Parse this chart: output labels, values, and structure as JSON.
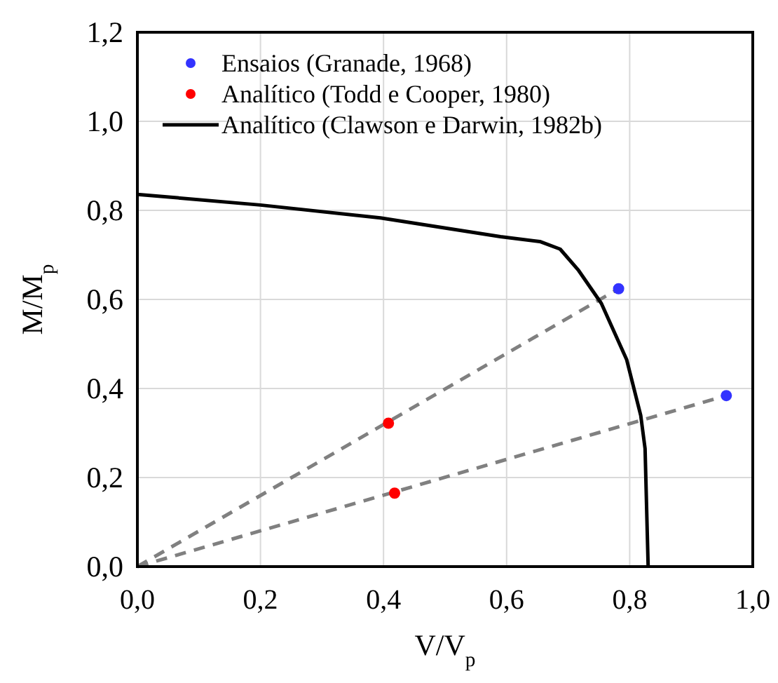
{
  "chart_data": {
    "type": "scatter",
    "xlabel": "V/V$_{p}$",
    "ylabel": "M/M$_{p}$",
    "xlim": [
      0,
      1
    ],
    "ylim": [
      0,
      1.2
    ],
    "xticks": [
      {
        "value": 0,
        "label": "0,0"
      },
      {
        "value": 0.2,
        "label": "0,2"
      },
      {
        "value": 0.4,
        "label": "0,4"
      },
      {
        "value": 0.6,
        "label": "0,6"
      },
      {
        "value": 0.8,
        "label": "0,8"
      },
      {
        "value": 1,
        "label": "1,0"
      }
    ],
    "yticks": [
      {
        "value": 0,
        "label": "0,0"
      },
      {
        "value": 0.2,
        "label": "0,2"
      },
      {
        "value": 0.4,
        "label": "0,4"
      },
      {
        "value": 0.6,
        "label": "0,6"
      },
      {
        "value": 0.8,
        "label": "0,8"
      },
      {
        "value": 1,
        "label": "1,0"
      },
      {
        "value": 1.2,
        "label": "1,2"
      }
    ],
    "grid": true,
    "legend": "top left",
    "series": [
      {
        "type": "line",
        "color": "#808080",
        "line_style": "dashed",
        "x": [
          0,
          0.782
        ],
        "values": [
          0,
          0.624
        ]
      },
      {
        "type": "line",
        "color": "#808080",
        "line_style": "dashed",
        "x": [
          0,
          0.957
        ],
        "values": [
          0,
          0.384
        ]
      },
      {
        "name": "Ensaios (Granade, 1968)",
        "color": "#3333ff",
        "marker": "circle",
        "x": [
          0.782,
          0.957
        ],
        "values": [
          0.624,
          0.384
        ]
      },
      {
        "name": "Analítico  (Todd e Cooper, 1980)",
        "color": "#ff0000",
        "marker": "circle",
        "x": [
          0.408,
          0.418
        ],
        "values": [
          0.322,
          0.165
        ]
      },
      {
        "name": "Analítico (Clawson e Darwin, 1982b)",
        "type": "line",
        "color": "#000000",
        "line_style": "solid",
        "x": [
          0,
          0.2,
          0.395,
          0.59,
          0.654,
          0.687,
          0.717,
          0.754,
          0.795,
          0.818,
          0.825,
          0.83
        ],
        "values": [
          0.836,
          0.812,
          0.783,
          0.741,
          0.73,
          0.713,
          0.665,
          0.591,
          0.465,
          0.339,
          0.265,
          0
        ]
      }
    ]
  }
}
